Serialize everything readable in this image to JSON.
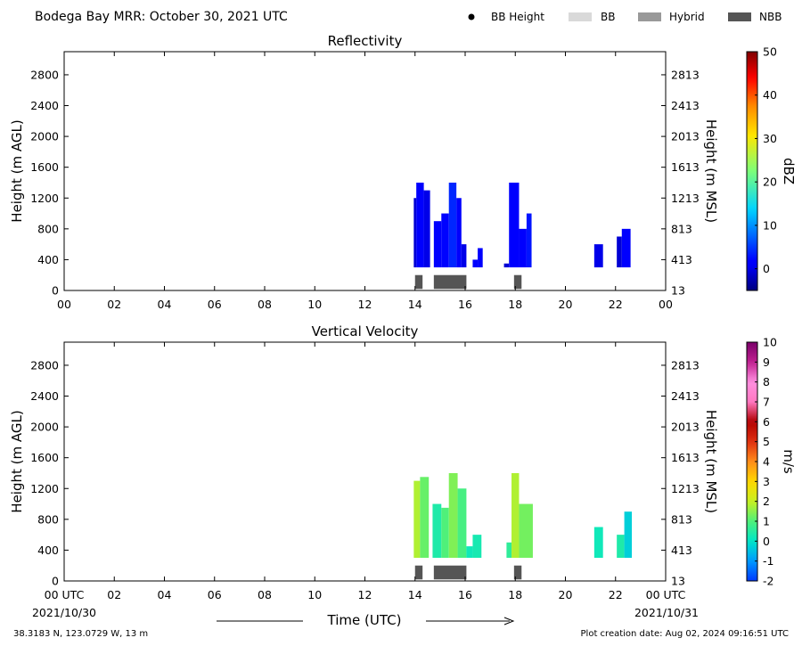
{
  "header": {
    "title": "Bodega Bay MRR:  October 30, 2021 UTC",
    "legend": [
      {
        "label": "BB Height",
        "kind": "dot",
        "color": "#000000"
      },
      {
        "label": "BB",
        "kind": "box",
        "color": "#d9d9d9"
      },
      {
        "label": "Hybrid",
        "kind": "box",
        "color": "#999999"
      },
      {
        "label": "NBB",
        "kind": "box",
        "color": "#555555"
      }
    ]
  },
  "chart_data": [
    {
      "type": "heatmap",
      "title": "Reflectivity",
      "ylabel": "Height (m AGL)",
      "ylabel_right": "Height (m MSL)",
      "x_ticks": [
        "00",
        "02",
        "04",
        "06",
        "08",
        "10",
        "12",
        "14",
        "16",
        "18",
        "20",
        "22",
        "00"
      ],
      "y_ticks": [
        "0",
        "400",
        "800",
        "1200",
        "1600",
        "2000",
        "2400",
        "2800"
      ],
      "y_ticks_right": [
        "13",
        "413",
        "813",
        "1213",
        "1613",
        "2013",
        "2413",
        "2813"
      ],
      "xlim": [
        0,
        24
      ],
      "ylim": [
        0,
        3100
      ],
      "colorbar": {
        "label": "dBZ",
        "range": [
          -5,
          50
        ],
        "ticks": [
          "0",
          "10",
          "20",
          "30",
          "40",
          "50"
        ],
        "tick_values": [
          0,
          10,
          20,
          30,
          40,
          50
        ]
      },
      "cells": [
        {
          "start": 13.95,
          "end": 14.05,
          "top": 1200,
          "value": -1
        },
        {
          "start": 14.05,
          "end": 14.35,
          "top": 1400,
          "value": 1
        },
        {
          "start": 14.35,
          "end": 14.6,
          "top": 1300,
          "value": 0
        },
        {
          "start": 14.75,
          "end": 15.05,
          "top": 900,
          "value": 1
        },
        {
          "start": 15.05,
          "end": 15.35,
          "top": 1000,
          "value": 2
        },
        {
          "start": 15.35,
          "end": 15.65,
          "top": 1400,
          "value": 4
        },
        {
          "start": 15.65,
          "end": 15.85,
          "top": 1200,
          "value": 1
        },
        {
          "start": 15.85,
          "end": 16.05,
          "top": 600,
          "value": 0
        },
        {
          "start": 16.3,
          "end": 16.5,
          "top": 400,
          "value": 2
        },
        {
          "start": 16.5,
          "end": 16.7,
          "top": 550,
          "value": 1
        },
        {
          "start": 17.55,
          "end": 17.75,
          "top": 350,
          "value": -1
        },
        {
          "start": 17.75,
          "end": 18.15,
          "top": 1400,
          "value": 1
        },
        {
          "start": 18.15,
          "end": 18.45,
          "top": 800,
          "value": 1
        },
        {
          "start": 18.45,
          "end": 18.65,
          "top": 1000,
          "value": 3
        },
        {
          "start": 21.15,
          "end": 21.5,
          "top": 600,
          "value": 0
        },
        {
          "start": 22.05,
          "end": 22.25,
          "top": 700,
          "value": -1
        },
        {
          "start": 22.25,
          "end": 22.6,
          "top": 800,
          "value": 1
        }
      ],
      "bb_markers": [
        {
          "start": 14.0,
          "end": 14.3,
          "type": "NBB"
        },
        {
          "start": 14.75,
          "end": 16.05,
          "type": "NBB"
        },
        {
          "start": 17.95,
          "end": 18.25,
          "type": "NBB"
        }
      ]
    },
    {
      "type": "heatmap",
      "title": "Vertical Velocity",
      "ylabel": "Height (m AGL)",
      "ylabel_right": "Height (m MSL)",
      "x_ticks": [
        "00 UTC",
        "02",
        "04",
        "06",
        "08",
        "10",
        "12",
        "14",
        "16",
        "18",
        "20",
        "22",
        "00 UTC"
      ],
      "y_ticks": [
        "0",
        "400",
        "800",
        "1200",
        "1600",
        "2000",
        "2400",
        "2800"
      ],
      "y_ticks_right": [
        "13",
        "413",
        "813",
        "1213",
        "1613",
        "2013",
        "2413",
        "2813"
      ],
      "xlim": [
        0,
        24
      ],
      "ylim": [
        0,
        3100
      ],
      "colorbar": {
        "label": "m/s",
        "range": [
          -2,
          10
        ],
        "ticks": [
          "-2",
          "-1",
          "0",
          "1",
          "2",
          "3",
          "4",
          "5",
          "6",
          "7",
          "8",
          "9",
          "10"
        ],
        "tick_values": [
          -2,
          -1,
          0,
          1,
          2,
          3,
          4,
          5,
          6,
          7,
          8,
          9,
          10
        ]
      },
      "cells": [
        {
          "start": 13.95,
          "end": 14.2,
          "top": 1300,
          "value": 1.8
        },
        {
          "start": 14.2,
          "end": 14.55,
          "top": 1350,
          "value": 1.2
        },
        {
          "start": 14.7,
          "end": 15.05,
          "top": 1000,
          "value": 0.4
        },
        {
          "start": 15.05,
          "end": 15.35,
          "top": 950,
          "value": 1.0
        },
        {
          "start": 15.35,
          "end": 15.7,
          "top": 1400,
          "value": 1.4
        },
        {
          "start": 15.7,
          "end": 16.05,
          "top": 1200,
          "value": 0.9
        },
        {
          "start": 16.05,
          "end": 16.3,
          "top": 450,
          "value": 0.2
        },
        {
          "start": 16.3,
          "end": 16.65,
          "top": 600,
          "value": 0.3
        },
        {
          "start": 17.65,
          "end": 17.85,
          "top": 500,
          "value": 0.6
        },
        {
          "start": 17.85,
          "end": 18.15,
          "top": 1400,
          "value": 1.8
        },
        {
          "start": 18.15,
          "end": 18.7,
          "top": 1000,
          "value": 1.3
        },
        {
          "start": 21.15,
          "end": 21.5,
          "top": 700,
          "value": 0.2
        },
        {
          "start": 22.05,
          "end": 22.35,
          "top": 600,
          "value": 0.4
        },
        {
          "start": 22.35,
          "end": 22.65,
          "top": 900,
          "value": -0.3
        }
      ],
      "bb_markers": [
        {
          "start": 14.0,
          "end": 14.3,
          "type": "NBB"
        },
        {
          "start": 14.75,
          "end": 16.05,
          "type": "NBB"
        },
        {
          "start": 17.95,
          "end": 18.25,
          "type": "NBB"
        }
      ]
    }
  ],
  "footer": {
    "date_left": "2021/10/30",
    "date_right": "2021/10/31",
    "xlabel": "Time (UTC)",
    "location": "38.3183 N, 123.0729 W, 13 m",
    "creation": "Plot creation date: Aug 02, 2024 09:16:51 UTC"
  }
}
